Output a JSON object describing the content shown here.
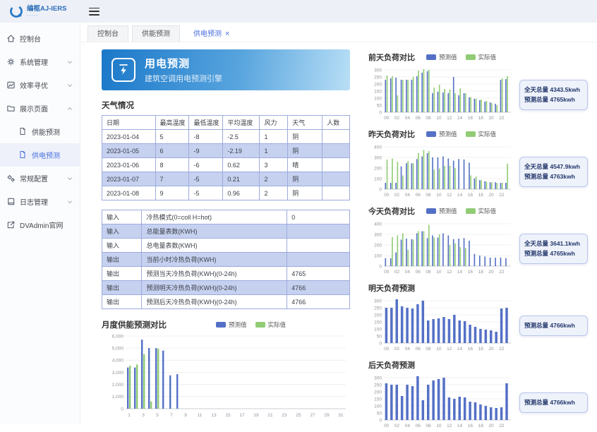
{
  "header": {
    "logo_text": "编枢AJ-IERS",
    "hamburger": "menu"
  },
  "sidebar": {
    "items": [
      {
        "label": "控制台",
        "icon": "home-icon"
      },
      {
        "label": "系统管理",
        "icon": "gear-icon",
        "chevron": "down"
      },
      {
        "label": "效率寻优",
        "icon": "chart-icon",
        "chevron": "down"
      },
      {
        "label": "展示页面",
        "icon": "folder-icon",
        "chevron": "up",
        "children": [
          {
            "label": "供能预测",
            "icon": "file-icon",
            "active": false
          },
          {
            "label": "供电预测",
            "icon": "file-icon",
            "active": true
          }
        ]
      },
      {
        "label": "常规配置",
        "icon": "cogs-icon",
        "chevron": "down"
      },
      {
        "label": "日志管理",
        "icon": "book-icon",
        "chevron": "down"
      },
      {
        "label": "DVAdmin官网",
        "icon": "external-link-icon"
      }
    ]
  },
  "tabs": [
    {
      "label": "控制台",
      "active": false
    },
    {
      "label": "供能预测",
      "active": false
    },
    {
      "label": "供电预测",
      "active": true,
      "closable": true
    }
  ],
  "banner": {
    "title": "用电预测",
    "subtitle": "建筑空调用电预测引擎"
  },
  "weather": {
    "title": "天气情况",
    "columns": [
      "日期",
      "最高温度",
      "最低温度",
      "平均温度",
      "风力",
      "天气",
      "人数"
    ],
    "rows": [
      [
        "2023-01-04",
        "5",
        "-8",
        "-2.5",
        "1",
        "阴",
        ""
      ],
      [
        "2023-01-05",
        "6",
        "-9",
        "-2.19",
        "1",
        "阴",
        ""
      ],
      [
        "2023-01-06",
        "8",
        "-6",
        "0.62",
        "3",
        "晴",
        ""
      ],
      [
        "2023-01-07",
        "7",
        "-5",
        "0.21",
        "2",
        "阴",
        ""
      ],
      [
        "2023-01-08",
        "9",
        "-5",
        "0.96",
        "2",
        "阴",
        ""
      ]
    ]
  },
  "io_table": {
    "rows": [
      [
        "输入",
        "冷热模式(0=coll H=hot)",
        "0"
      ],
      [
        "输入",
        "总能量表数(KWH)",
        ""
      ],
      [
        "输入",
        "总电量表数(KWH)",
        ""
      ],
      [
        "输出",
        "当前小时冷热负荷(KWH)",
        ""
      ],
      [
        "输出",
        "预测当天冷热负荷(KWH)(0-24h)",
        "4765"
      ],
      [
        "输出",
        "预测明天冷热负荷(KWH)(0-24h)",
        "4766"
      ],
      [
        "输出",
        "预测后天冷热负荷(KWH)(0-24h)",
        "4766"
      ]
    ]
  },
  "colors": {
    "bar_blue": "#5470c6",
    "bar_green": "#91cc75",
    "banner_from": "#1b78c9",
    "banner_to": "#b9dff6",
    "accent_blue": "#4a6fe0",
    "table_stripe": "#c6d1f0"
  },
  "chart_data": [
    {
      "id": "day-before-yesterday",
      "type": "bar",
      "title": "前天负荷对比",
      "legend": [
        "预测值",
        "实际值"
      ],
      "categories": [
        "00",
        "01",
        "02",
        "03",
        "04",
        "05",
        "06",
        "07",
        "08",
        "09",
        "10",
        "11",
        "12",
        "13",
        "14",
        "15",
        "16",
        "17",
        "18",
        "19",
        "20",
        "21",
        "22",
        "23"
      ],
      "series": [
        {
          "name": "预测值",
          "color": "#5470c6",
          "values": [
            230,
            240,
            245,
            230,
            230,
            230,
            255,
            280,
            290,
            135,
            145,
            140,
            135,
            250,
            120,
            135,
            105,
            95,
            85,
            75,
            70,
            60,
            230,
            235
          ]
        },
        {
          "name": "实际值",
          "color": "#91cc75",
          "values": [
            260,
            255,
            120,
            230,
            230,
            250,
            295,
            305,
            300,
            175,
            195,
            165,
            160,
            135,
            170,
            135,
            105,
            95,
            90,
            80,
            65,
            50,
            240,
            255
          ]
        }
      ],
      "ylim": [
        0,
        300
      ],
      "ytick": 50,
      "grid": true,
      "legend_position": "top",
      "info_lines": [
        "全天总量 4343.5kwh",
        "预测总量 4765kwh"
      ]
    },
    {
      "id": "yesterday",
      "type": "bar",
      "title": "昨天负荷对比",
      "legend": [
        "预测值",
        "实际值"
      ],
      "categories": [
        "00",
        "01",
        "02",
        "03",
        "04",
        "05",
        "06",
        "07",
        "08",
        "09",
        "10",
        "11",
        "12",
        "13",
        "14",
        "15",
        "16",
        "17",
        "18",
        "19",
        "20",
        "21",
        "22",
        "23"
      ],
      "series": [
        {
          "name": "预测值",
          "color": "#5470c6",
          "values": [
            60,
            60,
            60,
            215,
            245,
            245,
            285,
            310,
            340,
            300,
            300,
            310,
            290,
            270,
            285,
            280,
            250,
            100,
            85,
            75,
            65,
            65,
            60,
            60
          ]
        },
        {
          "name": "实际值",
          "color": "#91cc75",
          "values": [
            280,
            290,
            260,
            130,
            265,
            245,
            340,
            370,
            360,
            185,
            195,
            220,
            220,
            200,
            0,
            0,
            130,
            120,
            85,
            70,
            65,
            60,
            60,
            240
          ]
        }
      ],
      "ylim": [
        0,
        400
      ],
      "ytick": 100,
      "grid": true,
      "legend_position": "top",
      "info_lines": [
        "全天总量 4547.9kwh",
        "预测总量 4763kwh"
      ]
    },
    {
      "id": "today",
      "type": "bar",
      "title": "今天负荷对比",
      "legend": [
        "预测值",
        "实际值"
      ],
      "categories": [
        "00",
        "01",
        "02",
        "03",
        "04",
        "05",
        "06",
        "07",
        "08",
        "09",
        "10",
        "11",
        "12",
        "13",
        "14",
        "15",
        "16",
        "17",
        "18",
        "19",
        "20",
        "21",
        "22",
        "23"
      ],
      "series": [
        {
          "name": "预测值",
          "color": "#5470c6",
          "values": [
            75,
            75,
            130,
            250,
            260,
            255,
            310,
            330,
            265,
            290,
            270,
            310,
            290,
            255,
            260,
            265,
            240,
            115,
            100,
            90,
            80,
            80,
            80,
            75
          ]
        },
        {
          "name": "实际值",
          "color": "#91cc75",
          "values": [
            0,
            275,
            290,
            310,
            155,
            250,
            330,
            330,
            390,
            270,
            300,
            0,
            200,
            215,
            180,
            170,
            0,
            0,
            0,
            0,
            0,
            0,
            0,
            0
          ]
        }
      ],
      "ylim": [
        0,
        400
      ],
      "ytick": 100,
      "grid": true,
      "legend_position": "top",
      "info_lines": [
        "全天总量 3641.1kwh",
        "预测总量 4765kwh"
      ]
    },
    {
      "id": "tomorrow",
      "type": "bar",
      "title": "明天负荷预测",
      "categories": [
        "00",
        "01",
        "02",
        "03",
        "04",
        "05",
        "06",
        "07",
        "08",
        "09",
        "10",
        "11",
        "12",
        "13",
        "14",
        "15",
        "16",
        "17",
        "18",
        "19",
        "20",
        "21",
        "22",
        "23"
      ],
      "series": [
        {
          "name": "预测值",
          "color": "#5470c6",
          "values": [
            250,
            250,
            310,
            260,
            250,
            245,
            275,
            300,
            160,
            170,
            175,
            185,
            170,
            200,
            160,
            155,
            130,
            115,
            100,
            95,
            90,
            80,
            245,
            250
          ]
        }
      ],
      "ylim": [
        0,
        300
      ],
      "ytick": 50,
      "grid": true,
      "info_lines": [
        "预测总量 4766kwh"
      ]
    },
    {
      "id": "day-after-tomorrow",
      "type": "bar",
      "title": "后天负荷预测",
      "categories": [
        "00",
        "01",
        "02",
        "03",
        "04",
        "05",
        "06",
        "07",
        "08",
        "09",
        "10",
        "11",
        "12",
        "13",
        "14",
        "15",
        "16",
        "17",
        "18",
        "19",
        "20",
        "21",
        "22",
        "23"
      ],
      "series": [
        {
          "name": "预测值",
          "color": "#5470c6",
          "values": [
            260,
            250,
            250,
            170,
            250,
            240,
            310,
            140,
            250,
            280,
            290,
            300,
            160,
            150,
            165,
            160,
            130,
            125,
            110,
            100,
            90,
            85,
            90,
            260
          ]
        }
      ],
      "ylim": [
        0,
        300
      ],
      "ytick": 50,
      "grid": true,
      "info_lines": [
        "预测总量 4766kwh"
      ]
    },
    {
      "id": "monthly",
      "type": "bar",
      "title": "月度供能预测对比",
      "legend": [
        "预测值",
        "实际值"
      ],
      "categories": [
        1,
        2,
        3,
        4,
        5,
        6,
        7,
        8,
        9,
        10,
        11,
        12,
        13,
        14,
        15,
        16,
        17,
        18,
        19,
        20,
        21,
        22,
        23,
        24,
        25,
        26,
        27,
        28,
        29,
        30,
        31
      ],
      "series": [
        {
          "name": "预测值",
          "color": "#5470c6",
          "values": [
            3400,
            3400,
            5700,
            5000,
            5000,
            4800,
            2750,
            2850,
            0,
            0,
            0,
            0,
            0,
            0,
            0,
            0,
            0,
            0,
            0,
            0,
            0,
            0,
            0,
            0,
            0,
            0,
            0,
            0,
            0,
            0,
            0
          ]
        },
        {
          "name": "实际值",
          "color": "#91cc75",
          "values": [
            3550,
            3650,
            4500,
            600,
            4950,
            0,
            0,
            0,
            0,
            0,
            0,
            0,
            0,
            0,
            0,
            0,
            0,
            0,
            0,
            0,
            0,
            0,
            0,
            0,
            0,
            0,
            0,
            0,
            0,
            0,
            0
          ]
        }
      ],
      "ylim": [
        0,
        6000
      ],
      "ytick": 1000,
      "grid": true,
      "legend_position": "top",
      "xlabel": "",
      "ylabel": ""
    }
  ]
}
